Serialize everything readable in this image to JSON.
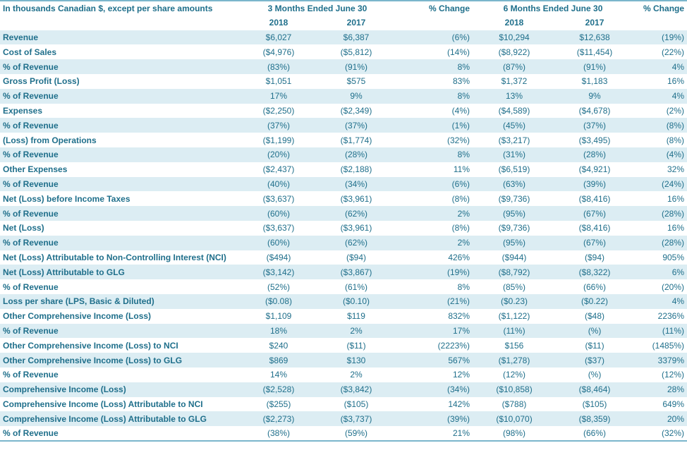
{
  "header": {
    "units_label": "In thousands Canadian $, except per share amounts",
    "group1": "3 Months Ended  June 30",
    "pct1": "% Change",
    "group2": "6 Months Ended  June 30",
    "pct2": "% Change",
    "years": [
      "2018",
      "2017",
      "2018",
      "2017"
    ]
  },
  "rows": [
    [
      "Revenue",
      "$6,027",
      "$6,387",
      "(6%)",
      "$10,294",
      "$12,638",
      "(19%)"
    ],
    [
      "Cost of Sales",
      "($4,976)",
      "($5,812)",
      "(14%)",
      "($8,922)",
      "($11,454)",
      "(22%)"
    ],
    [
      "% of Revenue",
      "(83%)",
      "(91%)",
      "8%",
      "(87%)",
      "(91%)",
      "4%"
    ],
    [
      "Gross Profit (Loss)",
      "$1,051",
      "$575",
      "83%",
      "$1,372",
      "$1,183",
      "16%"
    ],
    [
      "% of Revenue",
      "17%",
      "9%",
      "8%",
      "13%",
      "9%",
      "4%"
    ],
    [
      "Expenses",
      "($2,250)",
      "($2,349)",
      "(4%)",
      "($4,589)",
      "($4,678)",
      "(2%)"
    ],
    [
      "% of Revenue",
      "(37%)",
      "(37%)",
      "(1%)",
      "(45%)",
      "(37%)",
      "(8%)"
    ],
    [
      "(Loss) from Operations",
      "($1,199)",
      "($1,774)",
      "(32%)",
      "($3,217)",
      "($3,495)",
      "(8%)"
    ],
    [
      "% of Revenue",
      "(20%)",
      "(28%)",
      "8%",
      "(31%)",
      "(28%)",
      "(4%)"
    ],
    [
      "Other Expenses",
      "($2,437)",
      "($2,188)",
      "11%",
      "($6,519)",
      "($4,921)",
      "32%"
    ],
    [
      "% of Revenue",
      "(40%)",
      "(34%)",
      "(6%)",
      "(63%)",
      "(39%)",
      "(24%)"
    ],
    [
      "Net (Loss) before Income Taxes",
      "($3,637)",
      "($3,961)",
      "(8%)",
      "($9,736)",
      "($8,416)",
      "16%"
    ],
    [
      "% of Revenue",
      "(60%)",
      "(62%)",
      "2%",
      "(95%)",
      "(67%)",
      "(28%)"
    ],
    [
      "Net (Loss)",
      "($3,637)",
      "($3,961)",
      "(8%)",
      "($9,736)",
      "($8,416)",
      "16%"
    ],
    [
      "% of Revenue",
      "(60%)",
      "(62%)",
      "2%",
      "(95%)",
      "(67%)",
      "(28%)"
    ],
    [
      "Net (Loss) Attributable to Non-Controlling Interest (NCI)",
      "($494)",
      "($94)",
      "426%",
      "($944)",
      "($94)",
      "905%"
    ],
    [
      "Net (Loss) Attributable to GLG",
      "($3,142)",
      "($3,867)",
      "(19%)",
      "($8,792)",
      "($8,322)",
      "6%"
    ],
    [
      "% of Revenue",
      "(52%)",
      "(61%)",
      "8%",
      "(85%)",
      "(66%)",
      "(20%)"
    ],
    [
      "Loss per share (LPS, Basic & Diluted)",
      "($0.08)",
      "($0.10)",
      "(21%)",
      "($0.23)",
      "($0.22)",
      "4%"
    ],
    [
      "Other Comprehensive Income (Loss)",
      "$1,109",
      "$119",
      "832%",
      "($1,122)",
      "($48)",
      "2236%"
    ],
    [
      "% of Revenue",
      "18%",
      "2%",
      "17%",
      "(11%)",
      "(%)",
      "(11%)"
    ],
    [
      "Other Comprehensive Income (Loss) to NCI",
      "$240",
      "($11)",
      "(2223%)",
      "$156",
      "($11)",
      "(1485%)"
    ],
    [
      "Other Comprehensive Income (Loss) to GLG",
      "$869",
      "$130",
      "567%",
      "($1,278)",
      "($37)",
      "3379%"
    ],
    [
      " % of Revenue",
      "14%",
      "2%",
      "12%",
      "(12%)",
      "(%)",
      "(12%)"
    ],
    [
      "Comprehensive Income (Loss)",
      "($2,528)",
      "($3,842)",
      "(34%)",
      "($10,858)",
      "($8,464)",
      "28%"
    ],
    [
      "Comprehensive Income (Loss) Attributable to NCI",
      "($255)",
      "($105)",
      "142%",
      "($788)",
      "($105)",
      "649%"
    ],
    [
      "Comprehensive Income (Loss) Attributable to GLG",
      "($2,273)",
      "($3,737)",
      "(39%)",
      "($10,070)",
      "($8,359)",
      "20%"
    ],
    [
      "% of Revenue",
      "(38%)",
      "(59%)",
      "21%",
      "(98%)",
      "(66%)",
      "(32%)"
    ]
  ]
}
